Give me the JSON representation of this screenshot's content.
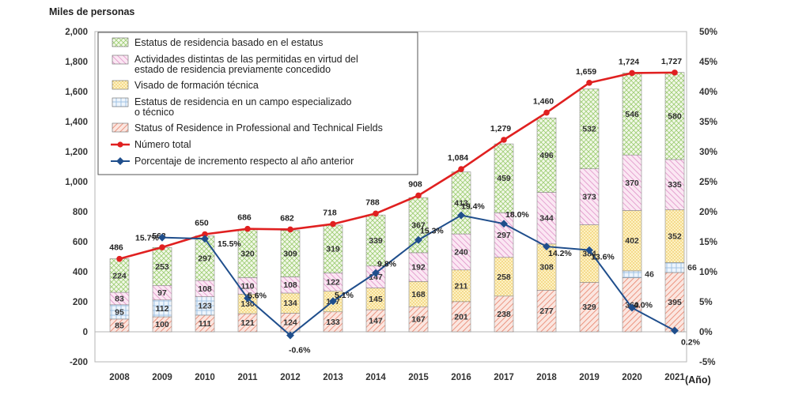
{
  "chart_data": {
    "type": "bar",
    "ylabel": "Miles de personas",
    "xlabel": "(Año)",
    "ylim": [
      -200,
      2000
    ],
    "y_ticks": [
      "-200",
      "0",
      "200",
      "400",
      "600",
      "800",
      "1,000",
      "1,200",
      "1,400",
      "1,600",
      "1,800",
      "2,000"
    ],
    "y2lim": [
      -5,
      50
    ],
    "y2_ticks": [
      "-5%",
      "0%",
      "5%",
      "10%",
      "15%",
      "20%",
      "25%",
      "30%",
      "35%",
      "40%",
      "45%",
      "50%"
    ],
    "categories": [
      "2008",
      "2009",
      "2010",
      "2011",
      "2012",
      "2013",
      "2014",
      "2015",
      "2016",
      "2017",
      "2018",
      "2019",
      "2020",
      "2021"
    ],
    "series": [
      {
        "name": "Status of Residence in Professional and Technical Fields",
        "kind": "stacked-bar",
        "values": [
          85,
          100,
          111,
          121,
          124,
          133,
          147,
          167,
          201,
          238,
          277,
          329,
          360,
          395
        ]
      },
      {
        "name": "Estatus de residencia en un campo especializado o técnico",
        "kind": "stacked-bar",
        "values": [
          95,
          112,
          123,
          0,
          0,
          0,
          0,
          0,
          0,
          0,
          0,
          0,
          46,
          66
        ]
      },
      {
        "name": "Visado de formación técnica",
        "kind": "stacked-bar",
        "values": [
          0,
          0,
          0,
          130,
          134,
          137,
          145,
          168,
          211,
          258,
          308,
          384,
          402,
          352
        ]
      },
      {
        "name": "Actividades distintas de las permitidas en virtud del estado de residencia previamente concedido",
        "kind": "stacked-bar",
        "values": [
          83,
          97,
          108,
          110,
          108,
          122,
          147,
          192,
          240,
          297,
          344,
          373,
          370,
          335
        ]
      },
      {
        "name": "Estatus de residencia basado en el estatus",
        "kind": "stacked-bar",
        "values": [
          224,
          253,
          297,
          320,
          309,
          319,
          339,
          367,
          413,
          459,
          496,
          532,
          546,
          580
        ]
      },
      {
        "name": "Número total",
        "kind": "line",
        "axis": "left",
        "values": [
          486,
          563,
          650,
          686,
          682,
          718,
          788,
          908,
          1084,
          1279,
          1460,
          1659,
          1724,
          1727
        ]
      },
      {
        "name": "Porcentaje de incremento respecto al año anterior",
        "kind": "line",
        "axis": "right",
        "values": [
          null,
          15.7,
          15.5,
          5.6,
          -0.6,
          5.1,
          9.8,
          15.3,
          19.4,
          18.0,
          14.2,
          13.6,
          4.0,
          0.2
        ]
      }
    ],
    "bar_labels": [
      [
        "85",
        "95",
        "",
        "83",
        "224"
      ],
      [
        "100",
        "112",
        "",
        "97",
        "253"
      ],
      [
        "111",
        "123",
        "",
        "108",
        "297"
      ],
      [
        "121",
        "",
        "130",
        "110",
        "320"
      ],
      [
        "124",
        "",
        "134",
        "108",
        "309"
      ],
      [
        "133",
        "",
        "137",
        "122",
        "319"
      ],
      [
        "147",
        "",
        "145",
        "147",
        "339"
      ],
      [
        "167",
        "",
        "168",
        "192",
        "367"
      ],
      [
        "201",
        "",
        "211",
        "240",
        "413"
      ],
      [
        "238",
        "",
        "258",
        "297",
        "459"
      ],
      [
        "277",
        "",
        "308",
        "344",
        "496"
      ],
      [
        "329",
        "",
        "384",
        "373",
        "532"
      ],
      [
        "360",
        "46",
        "402",
        "370",
        "546"
      ],
      [
        "395",
        "66",
        "352",
        "335",
        "580"
      ]
    ],
    "total_labels": [
      "486",
      "563",
      "650",
      "686",
      "682",
      "718",
      "788",
      "908",
      "1,084",
      "1,279",
      "1,460",
      "1,659",
      "1,724",
      "1,727"
    ],
    "pct_labels": [
      "",
      "15.7%",
      "15.5%",
      "5.6%",
      "-0.6%",
      "5.1%",
      "9.8%",
      "15.3%",
      "19.4%",
      "18.0%",
      "14.2%",
      "13.6%",
      "4.0%",
      "0.2%"
    ],
    "legend_position": "top-left",
    "grid": false,
    "colors": {
      "professional": "#e8826a",
      "specialized": "#8ab4dc",
      "technical": "#f2cc55",
      "activities": "#dc86c2",
      "status": "#9ccc72",
      "total_line": "#e02020",
      "pct_line": "#1f4e8c"
    }
  }
}
